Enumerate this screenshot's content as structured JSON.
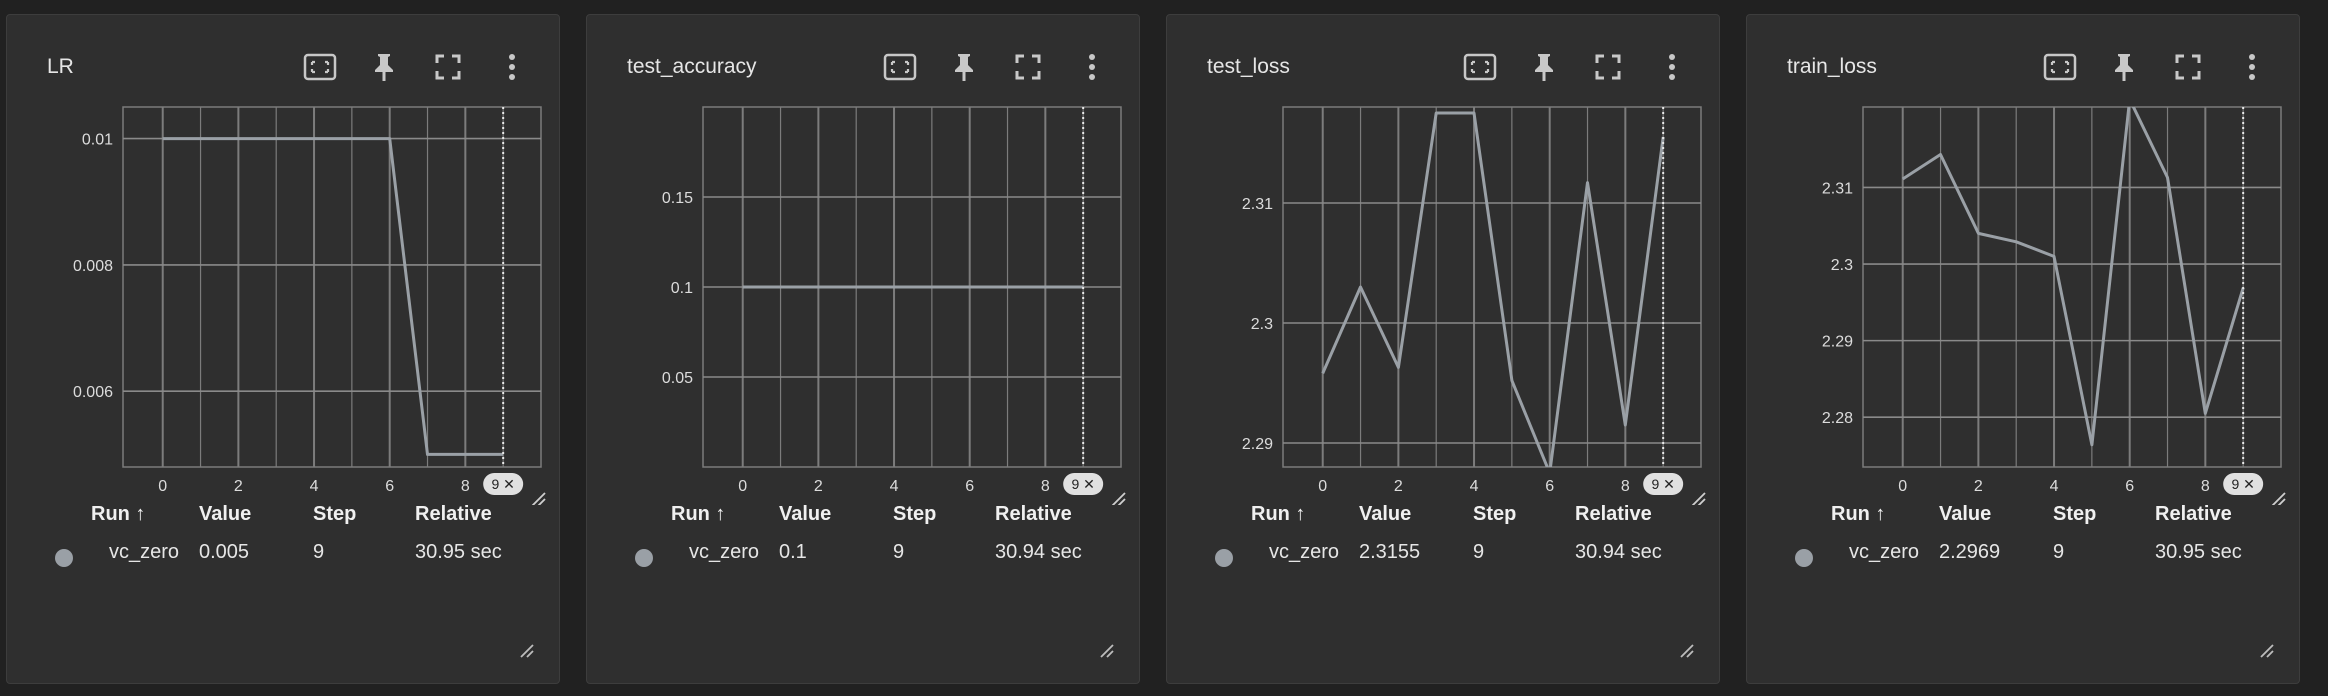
{
  "colors": {
    "background": "#212121",
    "card": "#2f2f2f",
    "series": "#9aa0a6",
    "grid": "#8a8a8a"
  },
  "legend_headers": {
    "run": "Run ↑",
    "value": "Value",
    "step": "Step",
    "relative": "Relative"
  },
  "toolbar_icons": [
    "fit-domain-icon",
    "pin-icon",
    "fullscreen-icon",
    "more-vert-icon"
  ],
  "cards": [
    {
      "title": "LR",
      "step_badge": "9 ✕",
      "row": {
        "run": "vc_zero",
        "value": "0.005",
        "step": "9",
        "relative": "30.95 sec"
      },
      "chart_data": {
        "type": "line",
        "x": [
          0,
          1,
          2,
          3,
          4,
          5,
          6,
          7,
          8,
          9
        ],
        "series": [
          {
            "values": [
              0.01,
              0.01,
              0.01,
              0.01,
              0.01,
              0.01,
              0.01,
              0.005,
              0.005,
              0.005
            ]
          }
        ],
        "xlim": [
          -1.05,
          10
        ],
        "ylim": [
          0.0048,
          0.0105
        ],
        "xticks": [
          "0",
          "2",
          "4",
          "6",
          "8"
        ],
        "xtick_values": [
          0,
          2,
          4,
          6,
          8
        ],
        "yticks": [
          "0.006",
          "0.008",
          "0.01"
        ],
        "ytick_values": [
          0.006,
          0.008,
          0.01
        ],
        "marker_x": 9
      }
    },
    {
      "title": "test_accuracy",
      "step_badge": "9 ✕",
      "row": {
        "run": "vc_zero",
        "value": "0.1",
        "step": "9",
        "relative": "30.94 sec"
      },
      "chart_data": {
        "type": "line",
        "x": [
          0,
          1,
          2,
          3,
          4,
          5,
          6,
          7,
          8,
          9
        ],
        "series": [
          {
            "values": [
              0.1,
              0.1,
              0.1,
              0.1,
              0.1,
              0.1,
              0.1,
              0.1,
              0.1,
              0.1
            ]
          }
        ],
        "xlim": [
          -1.05,
          10
        ],
        "ylim": [
          0,
          0.2
        ],
        "xticks": [
          "0",
          "2",
          "4",
          "6",
          "8"
        ],
        "xtick_values": [
          0,
          2,
          4,
          6,
          8
        ],
        "yticks": [
          "0.05",
          "0.1",
          "0.15"
        ],
        "ytick_values": [
          0.05,
          0.1,
          0.15
        ],
        "marker_x": 9
      }
    },
    {
      "title": "test_loss",
      "step_badge": "9 ✕",
      "row": {
        "run": "vc_zero",
        "value": "2.3155",
        "step": "9",
        "relative": "30.94 sec"
      },
      "chart_data": {
        "type": "line",
        "x": [
          0,
          1,
          2,
          3,
          4,
          5,
          6,
          7,
          8,
          9
        ],
        "series": [
          {
            "values": [
              2.2958,
              2.303,
              2.2963,
              2.3175,
              2.3175,
              2.2952,
              2.2875,
              2.3117,
              2.2915,
              2.3155
            ]
          }
        ],
        "xlim": [
          -1.05,
          10
        ],
        "ylim": [
          2.288,
          2.318
        ],
        "xticks": [
          "0",
          "2",
          "4",
          "6",
          "8"
        ],
        "xtick_values": [
          0,
          2,
          4,
          6,
          8
        ],
        "yticks": [
          "2.29",
          "2.3",
          "2.31"
        ],
        "ytick_values": [
          2.29,
          2.3,
          2.31
        ],
        "marker_x": 9
      }
    },
    {
      "title": "train_loss",
      "step_badge": "9 ✕",
      "row": {
        "run": "vc_zero",
        "value": "2.2969",
        "step": "9",
        "relative": "30.95 sec"
      },
      "chart_data": {
        "type": "line",
        "x": [
          0,
          1,
          2,
          3,
          4,
          5,
          6,
          7,
          8,
          9
        ],
        "series": [
          {
            "values": [
              2.3111,
              2.3143,
              2.304,
              2.3029,
              2.301,
              2.2764,
              2.3215,
              2.3113,
              2.2805,
              2.2969
            ]
          }
        ],
        "xlim": [
          -1.05,
          10
        ],
        "ylim": [
          2.2735,
          2.3205
        ],
        "xticks": [
          "0",
          "2",
          "4",
          "6",
          "8"
        ],
        "xtick_values": [
          0,
          2,
          4,
          6,
          8
        ],
        "yticks": [
          "2.28",
          "2.29",
          "2.3",
          "2.31"
        ],
        "ytick_values": [
          2.28,
          2.29,
          2.3,
          2.31
        ],
        "marker_x": 9
      }
    }
  ]
}
